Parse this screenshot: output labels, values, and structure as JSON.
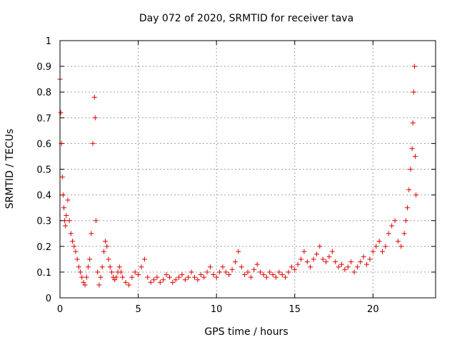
{
  "chart_data": {
    "type": "scatter",
    "title": "Day 072 of 2020, SRMTID for receiver tava",
    "xlabel": "GPS time / hours",
    "ylabel": "SRMTID / TECUs",
    "xlim": [
      0,
      24
    ],
    "ylim": [
      0,
      1
    ],
    "xticks": [
      0,
      5,
      10,
      15,
      20
    ],
    "yticks": [
      0,
      0.1,
      0.2,
      0.3,
      0.4,
      0.5,
      0.6,
      0.7,
      0.8,
      0.9,
      1
    ],
    "xtick_labels": [
      "0",
      "5",
      "10",
      "15",
      "20"
    ],
    "ytick_labels": [
      "0",
      "0.1",
      "0.2",
      "0.3",
      "0.4",
      "0.5",
      "0.6",
      "0.7",
      "0.8",
      "0.9",
      "1"
    ],
    "grid": true,
    "marker": "+",
    "color": "#e00000",
    "series": [
      {
        "name": "SRMTID",
        "x": [
          0.0,
          0.05,
          0.1,
          0.15,
          0.2,
          0.25,
          0.3,
          0.35,
          0.4,
          0.5,
          0.6,
          0.7,
          0.8,
          0.9,
          1.0,
          1.1,
          1.2,
          1.3,
          1.4,
          1.5,
          1.6,
          1.7,
          1.8,
          1.9,
          2.0,
          2.1,
          2.2,
          2.25,
          2.3,
          2.4,
          2.5,
          2.6,
          2.7,
          2.8,
          2.9,
          3.0,
          3.1,
          3.2,
          3.3,
          3.4,
          3.5,
          3.6,
          3.7,
          3.8,
          3.9,
          4.0,
          4.2,
          4.4,
          4.6,
          4.8,
          5.0,
          5.2,
          5.4,
          5.6,
          5.8,
          6.0,
          6.2,
          6.4,
          6.6,
          6.8,
          7.0,
          7.2,
          7.4,
          7.6,
          7.8,
          8.0,
          8.2,
          8.4,
          8.6,
          8.8,
          9.0,
          9.2,
          9.4,
          9.6,
          9.8,
          10.0,
          10.2,
          10.4,
          10.6,
          10.8,
          11.0,
          11.2,
          11.4,
          11.6,
          11.8,
          12.0,
          12.2,
          12.4,
          12.6,
          12.8,
          13.0,
          13.2,
          13.4,
          13.6,
          13.8,
          14.0,
          14.2,
          14.4,
          14.6,
          14.8,
          15.0,
          15.2,
          15.4,
          15.6,
          15.8,
          16.0,
          16.2,
          16.4,
          16.6,
          16.8,
          17.0,
          17.2,
          17.4,
          17.6,
          17.8,
          18.0,
          18.2,
          18.4,
          18.6,
          18.8,
          19.0,
          19.2,
          19.4,
          19.6,
          19.8,
          20.0,
          20.2,
          20.4,
          20.6,
          20.8,
          21.0,
          21.2,
          21.4,
          21.6,
          21.8,
          22.0,
          22.1,
          22.2,
          22.3,
          22.4,
          22.5,
          22.55,
          22.6,
          22.65,
          22.7,
          22.75
        ],
        "y": [
          0.85,
          0.72,
          0.6,
          0.47,
          0.4,
          0.35,
          0.3,
          0.28,
          0.32,
          0.38,
          0.3,
          0.25,
          0.22,
          0.2,
          0.18,
          0.15,
          0.12,
          0.1,
          0.08,
          0.06,
          0.05,
          0.08,
          0.12,
          0.15,
          0.25,
          0.6,
          0.78,
          0.7,
          0.3,
          0.1,
          0.05,
          0.08,
          0.12,
          0.18,
          0.22,
          0.2,
          0.15,
          0.12,
          0.1,
          0.08,
          0.07,
          0.08,
          0.1,
          0.12,
          0.1,
          0.08,
          0.06,
          0.05,
          0.08,
          0.1,
          0.09,
          0.12,
          0.15,
          0.08,
          0.06,
          0.07,
          0.08,
          0.06,
          0.07,
          0.09,
          0.08,
          0.06,
          0.07,
          0.08,
          0.09,
          0.07,
          0.08,
          0.1,
          0.08,
          0.07,
          0.09,
          0.08,
          0.1,
          0.12,
          0.09,
          0.08,
          0.1,
          0.12,
          0.1,
          0.09,
          0.11,
          0.14,
          0.18,
          0.12,
          0.09,
          0.1,
          0.08,
          0.11,
          0.13,
          0.1,
          0.09,
          0.08,
          0.1,
          0.09,
          0.08,
          0.1,
          0.09,
          0.08,
          0.1,
          0.12,
          0.11,
          0.13,
          0.15,
          0.18,
          0.14,
          0.12,
          0.15,
          0.17,
          0.2,
          0.15,
          0.14,
          0.16,
          0.18,
          0.14,
          0.12,
          0.13,
          0.11,
          0.12,
          0.14,
          0.1,
          0.12,
          0.14,
          0.16,
          0.13,
          0.15,
          0.18,
          0.2,
          0.22,
          0.18,
          0.2,
          0.25,
          0.28,
          0.3,
          0.22,
          0.2,
          0.25,
          0.3,
          0.35,
          0.42,
          0.5,
          0.58,
          0.68,
          0.8,
          0.9,
          0.55,
          0.4
        ]
      }
    ]
  }
}
